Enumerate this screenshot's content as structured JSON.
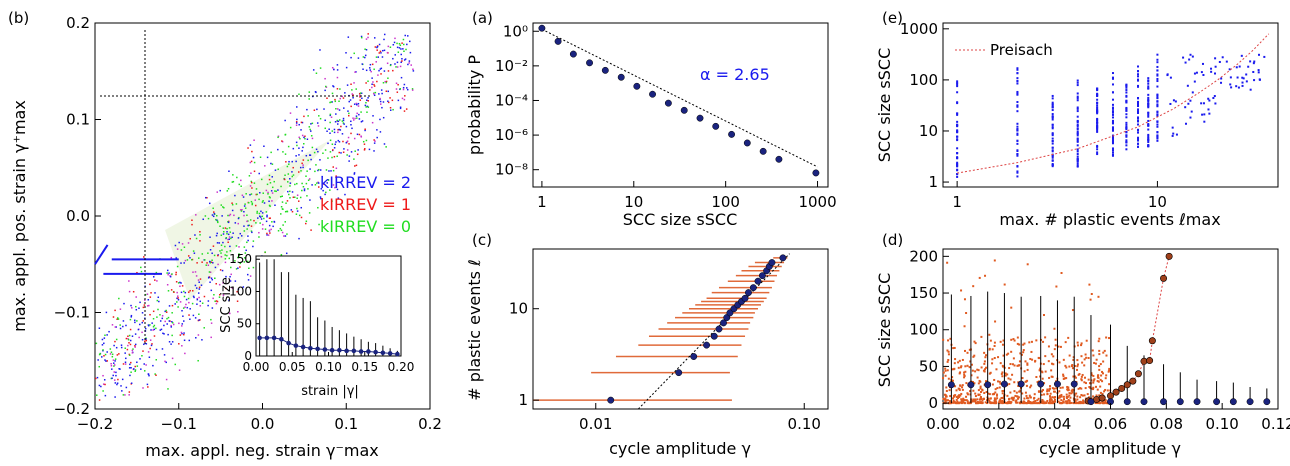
{
  "panels": {
    "b": {
      "label": "(b)",
      "xlabel": "max. appl. neg. strain γ⁻max",
      "ylabel": "max. appl. pos. strain γ⁺max",
      "xticks": [
        "−0.2",
        "−0.1",
        "0.0",
        "0.1",
        "0.2"
      ],
      "yticks": [
        "−0.2",
        "−0.1",
        "0.0",
        "0.1",
        "0.2"
      ],
      "legend": [
        {
          "text": "kIRREV = 2",
          "color": "#1a1aee"
        },
        {
          "text": "kIRREV = 1",
          "color": "#ee1a1a"
        },
        {
          "text": "kIRREV = 0",
          "color": "#22dd22"
        }
      ],
      "inset": {
        "ylabel": "SCC size",
        "xlabel": "strain |γ|",
        "xticks": [
          "0.00",
          "0.05",
          "0.10",
          "0.15",
          "0.20"
        ],
        "yticks": [
          "0",
          "50",
          "100",
          "150"
        ]
      }
    },
    "a": {
      "label": "(a)",
      "xlabel": "SCC size sSCC",
      "ylabel": "probability P",
      "annotation": "α = 2.65",
      "xticks": [
        "1",
        "10",
        "100",
        "1000"
      ],
      "yticks": [
        "10⁰",
        "10⁻²",
        "10⁻⁴",
        "10⁻⁶",
        "10⁻⁸"
      ]
    },
    "c": {
      "label": "(c)",
      "xlabel": "cycle amplitude γ",
      "ylabel": "# plastic events ℓ",
      "xticks": [
        "0.01",
        "0.10"
      ],
      "yticks": [
        "1",
        "10"
      ]
    },
    "e": {
      "label": "(e)",
      "xlabel": "max. # plastic events ℓmax",
      "ylabel": "SCC size sSCC",
      "legend": "Preisach",
      "xticks": [
        "1",
        "10"
      ],
      "yticks": [
        "1",
        "10",
        "100",
        "1000"
      ]
    },
    "d": {
      "label": "(d)",
      "xlabel": "cycle amplitude γ",
      "ylabel": "SCC size sSCC",
      "xticks": [
        "0.00",
        "0.02",
        "0.04",
        "0.06",
        "0.08",
        "0.10",
        "0.12"
      ],
      "yticks": [
        "0",
        "50",
        "100",
        "150",
        "200"
      ]
    }
  },
  "chart_data": [
    {
      "panel": "a",
      "type": "scatter",
      "xscale": "log",
      "yscale": "log",
      "xlim": [
        0.8,
        1300
      ],
      "ylim": [
        1e-09,
        3
      ],
      "x": [
        1,
        1.5,
        2.2,
        3.3,
        4.9,
        7.3,
        10.8,
        16,
        23.8,
        35.4,
        52.6,
        78,
        116,
        172,
        256,
        380,
        960
      ],
      "y": [
        1.5,
        0.26,
        0.048,
        0.015,
        0.0055,
        0.0022,
        0.00066,
        0.00023,
        7e-05,
        2.7e-05,
        9.5e-06,
        3.2e-06,
        1.1e-06,
        3.5e-07,
        1.15e-07,
        4e-08,
        6.5e-09
      ],
      "fit": {
        "alpha": 2.65,
        "x": [
          1,
          1000
        ],
        "y": [
          1.3,
          1.45e-08
        ]
      }
    },
    {
      "panel": "c",
      "type": "scatter",
      "xscale": "log",
      "yscale": "log",
      "xlim": [
        0.005,
        0.13
      ],
      "ylim": [
        0.8,
        45
      ],
      "points": [
        {
          "x": 0.0118,
          "y": 1,
          "xmin": 0.005,
          "xmax": 0.045
        },
        {
          "x": 0.025,
          "y": 2,
          "xmin": 0.0095,
          "xmax": 0.044
        },
        {
          "x": 0.0295,
          "y": 3,
          "xmin": 0.0125,
          "xmax": 0.048
        },
        {
          "x": 0.034,
          "y": 4,
          "xmin": 0.016,
          "xmax": 0.05
        },
        {
          "x": 0.037,
          "y": 5,
          "xmin": 0.018,
          "xmax": 0.052
        },
        {
          "x": 0.039,
          "y": 6,
          "xmin": 0.02,
          "xmax": 0.054
        },
        {
          "x": 0.041,
          "y": 7,
          "xmin": 0.022,
          "xmax": 0.055
        },
        {
          "x": 0.0425,
          "y": 8,
          "xmin": 0.024,
          "xmax": 0.057
        },
        {
          "x": 0.044,
          "y": 9,
          "xmin": 0.026,
          "xmax": 0.058
        },
        {
          "x": 0.046,
          "y": 10,
          "xmin": 0.028,
          "xmax": 0.06
        },
        {
          "x": 0.048,
          "y": 11,
          "xmin": 0.03,
          "xmax": 0.062
        },
        {
          "x": 0.05,
          "y": 12,
          "xmin": 0.032,
          "xmax": 0.064
        },
        {
          "x": 0.052,
          "y": 13,
          "xmin": 0.034,
          "xmax": 0.066
        },
        {
          "x": 0.054,
          "y": 15,
          "xmin": 0.036,
          "xmax": 0.068
        },
        {
          "x": 0.057,
          "y": 17,
          "xmin": 0.039,
          "xmax": 0.07
        },
        {
          "x": 0.06,
          "y": 20,
          "xmin": 0.043,
          "xmax": 0.072
        },
        {
          "x": 0.063,
          "y": 23,
          "xmin": 0.047,
          "xmax": 0.074
        },
        {
          "x": 0.066,
          "y": 26,
          "xmin": 0.05,
          "xmax": 0.076
        },
        {
          "x": 0.068,
          "y": 29,
          "xmin": 0.054,
          "xmax": 0.078
        },
        {
          "x": 0.07,
          "y": 32,
          "xmin": 0.058,
          "xmax": 0.08
        },
        {
          "x": 0.079,
          "y": 36,
          "xmin": 0.071,
          "xmax": 0.083
        }
      ],
      "fit": {
        "x": [
          0.016,
          0.085
        ],
        "y": [
          0.8,
          40
        ]
      }
    },
    {
      "panel": "e",
      "type": "scatter",
      "xscale": "log",
      "yscale": "log",
      "xlim": [
        0.85,
        40
      ],
      "ylim": [
        0.8,
        1300
      ],
      "columns": [
        {
          "x": 1,
          "ymin": 1,
          "ymax": 100
        },
        {
          "x": 2,
          "ymin": 1,
          "ymax": 200
        },
        {
          "x": 3,
          "ymin": 2,
          "ymax": 50
        },
        {
          "x": 4,
          "ymin": 2,
          "ymax": 130
        },
        {
          "x": 5,
          "ymin": 3,
          "ymax": 70
        },
        {
          "x": 6,
          "ymin": 3,
          "ymax": 160
        },
        {
          "x": 7,
          "ymin": 4,
          "ymax": 90
        },
        {
          "x": 8,
          "ymin": 4,
          "ymax": 200
        },
        {
          "x": 9,
          "ymin": 5,
          "ymax": 110
        },
        {
          "x": 10,
          "ymin": 5,
          "ymax": 400
        },
        {
          "x": 12,
          "ymin": 8,
          "ymax": 300
        },
        {
          "x": 14,
          "ymin": 10,
          "ymax": 350
        },
        {
          "x": 16,
          "ymin": 15,
          "ymax": 500
        },
        {
          "x": 18,
          "ymin": 20,
          "ymax": 400
        },
        {
          "x": 20,
          "ymin": 25,
          "ymax": 300
        },
        {
          "x": 24,
          "ymin": 40,
          "ymax": 250
        },
        {
          "x": 28,
          "ymin": 60,
          "ymax": 300
        },
        {
          "x": 32,
          "ymin": 90,
          "ymax": 350
        }
      ],
      "preisach": {
        "x": [
          1,
          2,
          4,
          8,
          12,
          16,
          20,
          25,
          30,
          36
        ],
        "y": [
          1.5,
          2.4,
          4.5,
          12,
          27,
          55,
          100,
          200,
          380,
          800
        ]
      }
    },
    {
      "panel": "d",
      "type": "scatter",
      "xlim": [
        0,
        0.12
      ],
      "ylim": [
        -8,
        210
      ],
      "means": [
        {
          "x": 0.003,
          "y": 25,
          "top": 148
        },
        {
          "x": 0.01,
          "y": 25,
          "top": 146
        },
        {
          "x": 0.016,
          "y": 25,
          "top": 152
        },
        {
          "x": 0.022,
          "y": 26,
          "top": 150
        },
        {
          "x": 0.028,
          "y": 26,
          "top": 145
        },
        {
          "x": 0.035,
          "y": 26,
          "top": 146
        },
        {
          "x": 0.041,
          "y": 26,
          "top": 140
        },
        {
          "x": 0.047,
          "y": 26,
          "top": 145
        },
        {
          "x": 0.053,
          "y": 2,
          "top": 120
        },
        {
          "x": 0.06,
          "y": 2,
          "top": 107
        },
        {
          "x": 0.066,
          "y": 2,
          "top": 78
        },
        {
          "x": 0.072,
          "y": 2,
          "top": 65
        },
        {
          "x": 0.079,
          "y": 2,
          "top": 53
        },
        {
          "x": 0.085,
          "y": 2,
          "top": 42
        },
        {
          "x": 0.091,
          "y": 2,
          "top": 32
        },
        {
          "x": 0.098,
          "y": 2,
          "top": 30
        },
        {
          "x": 0.104,
          "y": 2,
          "top": 28
        },
        {
          "x": 0.11,
          "y": 2,
          "top": 22
        },
        {
          "x": 0.116,
          "y": 2,
          "top": 20
        }
      ],
      "preisach": {
        "x": [
          0.052,
          0.055,
          0.057,
          0.06,
          0.062,
          0.064,
          0.066,
          0.068,
          0.07,
          0.072,
          0.074,
          0.075,
          0.079,
          0.081
        ],
        "y": [
          3,
          5,
          7,
          10,
          15,
          20,
          25,
          30,
          40,
          57,
          58,
          85,
          170,
          200
        ]
      }
    },
    {
      "panel": "b-inset",
      "type": "scatter",
      "xlim": [
        0,
        0.2
      ],
      "ylim": [
        0,
        155
      ],
      "x": [
        0.005,
        0.015,
        0.025,
        0.035,
        0.045,
        0.055,
        0.065,
        0.075,
        0.085,
        0.095,
        0.105,
        0.115,
        0.125,
        0.135,
        0.145,
        0.155,
        0.165,
        0.175,
        0.185,
        0.195
      ],
      "y": [
        28,
        28,
        28,
        26,
        20,
        16,
        14,
        12,
        11,
        10,
        9,
        9,
        8,
        8,
        7,
        7,
        6,
        5,
        4,
        3
      ],
      "top": [
        145,
        150,
        150,
        130,
        130,
        95,
        90,
        85,
        60,
        55,
        45,
        40,
        35,
        30,
        26,
        22,
        20,
        16,
        12,
        8
      ]
    }
  ]
}
